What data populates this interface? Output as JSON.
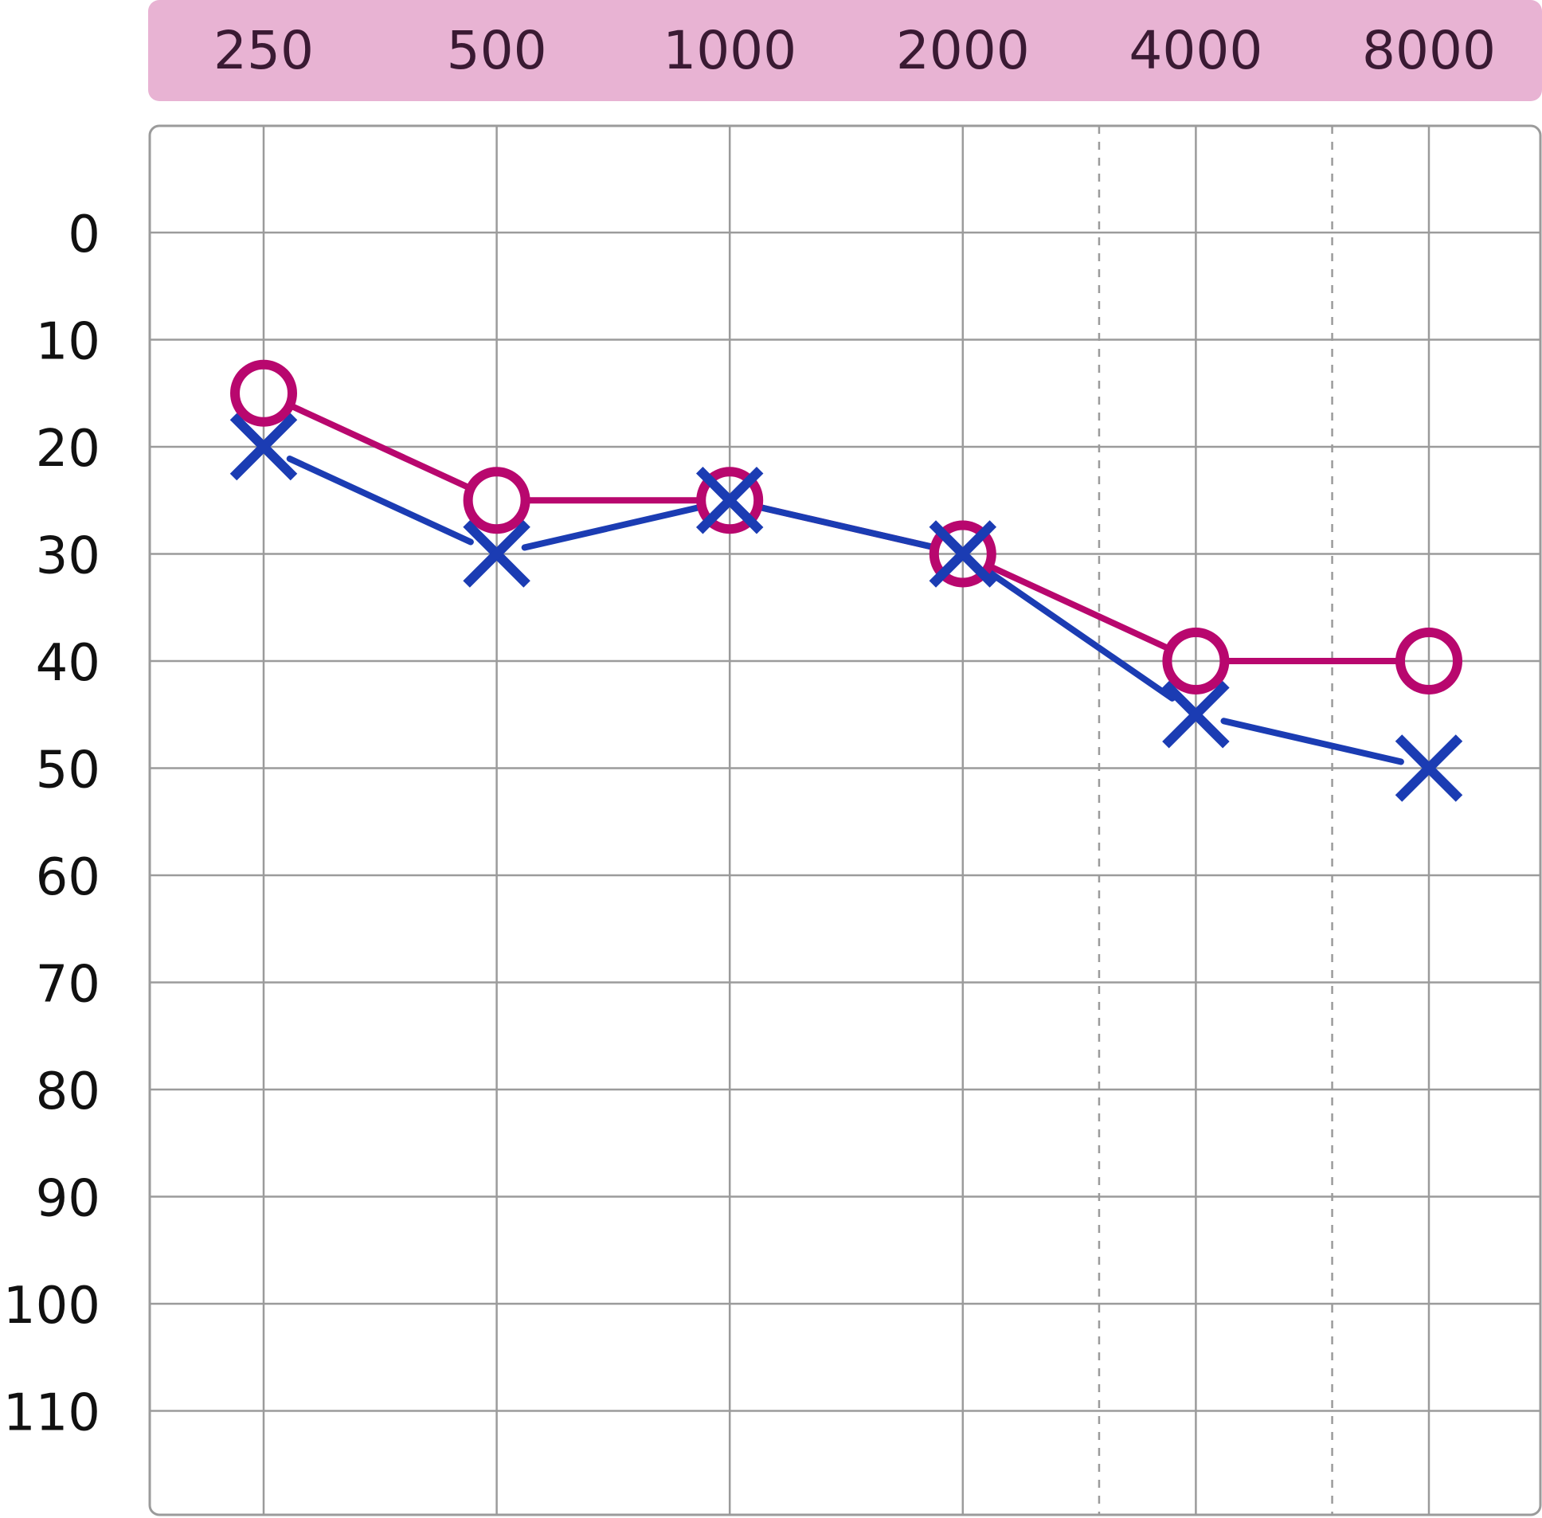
{
  "colors": {
    "header_band": "#e8b3d3",
    "header_text": "#3a1a33",
    "grid": "#9b9b9b",
    "circle_series": "#b8076e",
    "cross_series": "#1b3cb3",
    "axis_text": "#111111"
  },
  "chart_data": {
    "type": "line",
    "title": "",
    "xlabel": "",
    "ylabel": "",
    "x_scale": "log2",
    "y_inverted": true,
    "x": [
      250,
      500,
      1000,
      2000,
      4000,
      8000
    ],
    "x_tick_labels": [
      "250",
      "500",
      "1000",
      "2000",
      "4000",
      "8000"
    ],
    "dashed_gridlines_x": [
      3000,
      6000
    ],
    "y_ticks": [
      0,
      10,
      20,
      30,
      40,
      50,
      60,
      70,
      80,
      90,
      100,
      110
    ],
    "y_tick_labels": [
      "0",
      "10",
      "20",
      "30",
      "40",
      "50",
      "60",
      "70",
      "80",
      "90",
      "100",
      "110"
    ],
    "ylim": [
      -10,
      120
    ],
    "grid": true,
    "legend": "none",
    "series": [
      {
        "marker": "circle",
        "values": [
          15,
          25,
          25,
          30,
          40,
          40
        ]
      },
      {
        "marker": "cross",
        "values": [
          20,
          30,
          25,
          30,
          45,
          50
        ]
      }
    ]
  }
}
